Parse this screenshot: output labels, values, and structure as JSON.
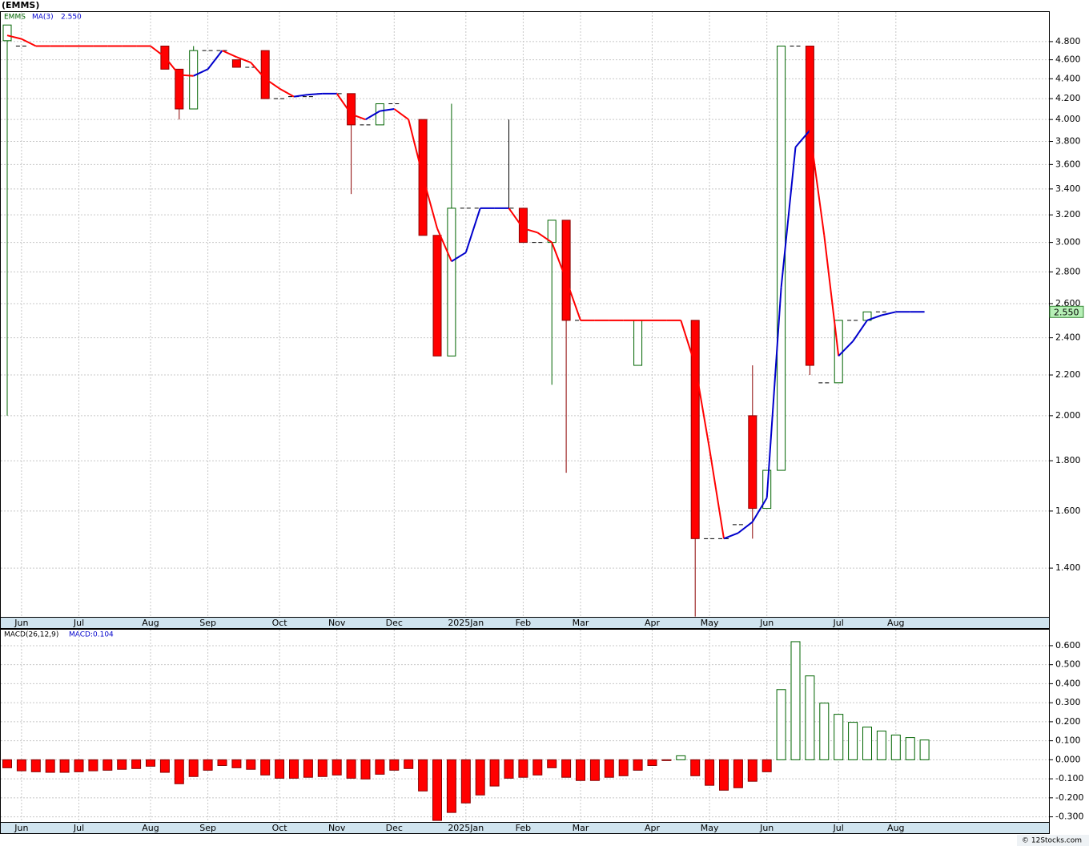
{
  "footer": "© 12Stocks.com",
  "chart_data": [
    {
      "type": "candlestick",
      "title": "(EMMS)",
      "log_scale": true,
      "grid": true,
      "categories": [
        null,
        "Jun",
        null,
        null,
        null,
        "Jul",
        null,
        null,
        null,
        null,
        "Aug",
        null,
        null,
        null,
        "Sep",
        null,
        null,
        null,
        null,
        "Oct",
        null,
        null,
        null,
        "Nov",
        null,
        null,
        null,
        "Dec",
        null,
        null,
        null,
        null,
        "2025Jan",
        null,
        null,
        null,
        "Feb",
        null,
        null,
        null,
        "Mar",
        null,
        null,
        null,
        null,
        "Apr",
        null,
        null,
        null,
        "May",
        null,
        null,
        null,
        "Jun",
        null,
        null,
        null,
        null,
        "Jul",
        null,
        null,
        null,
        "Aug",
        null,
        null
      ],
      "ylim": [
        1.249,
        5.144
      ],
      "yticks": [
        {
          "value": 1.4,
          "label": "1.400"
        },
        {
          "value": 1.6,
          "label": "1.600"
        },
        {
          "value": 1.8,
          "label": "1.800"
        },
        {
          "value": 2.0,
          "label": "2.000"
        },
        {
          "value": 2.2,
          "label": "2.200"
        },
        {
          "value": 2.4,
          "label": "2.400"
        },
        {
          "value": 2.6,
          "label": "2.600"
        },
        {
          "value": 2.8,
          "label": "2.800"
        },
        {
          "value": 3.0,
          "label": "3.000"
        },
        {
          "value": 3.2,
          "label": "3.200"
        },
        {
          "value": 3.4,
          "label": "3.400"
        },
        {
          "value": 3.6,
          "label": "3.600"
        },
        {
          "value": 3.8,
          "label": "3.800"
        },
        {
          "value": 4.0,
          "label": "4.000"
        },
        {
          "value": 4.2,
          "label": "4.200"
        },
        {
          "value": 4.4,
          "label": "4.400"
        },
        {
          "value": 4.6,
          "label": "4.600"
        },
        {
          "value": 4.8,
          "label": "4.800"
        }
      ],
      "series": [
        {
          "name": "EMMS",
          "color": "#006400",
          "down_color": "#ff0000",
          "open": [
            4.81,
            4.75,
            null,
            null,
            null,
            null,
            null,
            null,
            null,
            null,
            null,
            4.75,
            4.5,
            4.1,
            4.7,
            4.7,
            4.6,
            4.52,
            4.7,
            4.2,
            4.22,
            4.22,
            4.25,
            4.25,
            4.25,
            3.95,
            3.95,
            4.15,
            null,
            4.0,
            3.05,
            2.3,
            3.25,
            3.25,
            3.25,
            3.25,
            3.25,
            3.0,
            3.0,
            3.16,
            2.5,
            null,
            null,
            null,
            2.25,
            null,
            null,
            null,
            2.5,
            1.5,
            1.5,
            1.55,
            2.0,
            1.61,
            1.76,
            4.75,
            4.75,
            2.16,
            2.16,
            2.5,
            2.5,
            2.55,
            null,
            null,
            null
          ],
          "high": [
            4.99,
            4.75,
            null,
            null,
            null,
            null,
            null,
            null,
            null,
            null,
            null,
            4.75,
            4.5,
            4.75,
            4.7,
            4.7,
            4.6,
            4.52,
            4.7,
            4.2,
            4.22,
            4.22,
            4.25,
            4.25,
            4.25,
            3.95,
            4.15,
            4.15,
            null,
            4.0,
            3.05,
            4.15,
            3.25,
            3.25,
            3.25,
            4.0,
            3.25,
            3.0,
            3.16,
            3.16,
            2.5,
            null,
            null,
            null,
            2.5,
            null,
            null,
            null,
            2.5,
            1.5,
            1.5,
            1.55,
            2.25,
            1.76,
            4.75,
            4.75,
            4.75,
            2.16,
            2.5,
            2.5,
            2.55,
            2.55,
            null,
            null,
            null
          ],
          "low": [
            2.0,
            4.75,
            null,
            null,
            null,
            null,
            null,
            null,
            null,
            null,
            null,
            4.5,
            4.0,
            4.1,
            4.7,
            4.7,
            4.52,
            4.52,
            4.2,
            4.2,
            4.22,
            4.22,
            4.25,
            4.25,
            3.36,
            3.95,
            3.95,
            4.15,
            null,
            3.05,
            2.3,
            2.3,
            3.25,
            3.25,
            3.25,
            3.25,
            3.0,
            3.0,
            2.15,
            1.75,
            2.5,
            null,
            null,
            null,
            2.25,
            null,
            null,
            null,
            1.25,
            1.5,
            1.5,
            1.55,
            1.5,
            1.61,
            1.76,
            4.75,
            2.2,
            2.16,
            2.16,
            2.5,
            2.5,
            2.55,
            null,
            null,
            null
          ],
          "close": [
            4.99,
            4.75,
            null,
            null,
            null,
            null,
            null,
            null,
            null,
            null,
            null,
            4.5,
            4.1,
            4.7,
            4.7,
            4.7,
            4.52,
            4.52,
            4.2,
            4.2,
            4.22,
            4.22,
            4.25,
            4.25,
            3.95,
            3.95,
            4.15,
            4.15,
            null,
            3.05,
            2.3,
            3.25,
            3.25,
            3.25,
            3.25,
            3.25,
            3.0,
            3.0,
            3.16,
            2.5,
            2.5,
            null,
            null,
            null,
            2.5,
            null,
            null,
            null,
            1.5,
            1.5,
            1.5,
            1.55,
            1.61,
            1.76,
            4.75,
            4.75,
            2.25,
            2.16,
            2.5,
            2.5,
            2.55,
            2.55,
            null,
            null,
            null
          ]
        },
        {
          "name": "MA(3)",
          "color": "#0000cc",
          "down_color": "#ff0000",
          "values": [
            4.87,
            4.83,
            4.75,
            4.75,
            4.75,
            4.75,
            4.75,
            4.75,
            4.75,
            4.75,
            4.75,
            4.63,
            4.44,
            4.43,
            4.5,
            4.7,
            4.63,
            4.57,
            4.4,
            4.3,
            4.22,
            4.24,
            4.25,
            4.25,
            4.05,
            4.0,
            4.08,
            4.1,
            4.0,
            3.5,
            3.1,
            2.87,
            2.93,
            3.25,
            3.25,
            3.25,
            3.1,
            3.07,
            3.0,
            2.75,
            2.5,
            2.5,
            2.5,
            2.5,
            2.5,
            2.5,
            2.5,
            2.5,
            2.25,
            1.85,
            1.5,
            1.52,
            1.56,
            1.65,
            2.7,
            3.75,
            3.9,
            3.05,
            2.3,
            2.38,
            2.5,
            2.53,
            2.55,
            2.55,
            2.55
          ]
        }
      ],
      "last_price": {
        "value": 2.55,
        "label": "2.550"
      }
    },
    {
      "type": "bar",
      "name": "MACD(26,12,9)",
      "value_label": "MACD:0.104",
      "grid": true,
      "color": "#006400",
      "down_color": "#ff0000",
      "values": [
        -0.042,
        -0.058,
        -0.063,
        -0.066,
        -0.066,
        -0.063,
        -0.058,
        -0.055,
        -0.05,
        -0.046,
        -0.034,
        -0.066,
        -0.126,
        -0.088,
        -0.055,
        -0.03,
        -0.042,
        -0.05,
        -0.08,
        -0.097,
        -0.097,
        -0.092,
        -0.088,
        -0.08,
        -0.097,
        -0.101,
        -0.076,
        -0.055,
        -0.046,
        -0.164,
        -0.319,
        -0.277,
        -0.227,
        -0.185,
        -0.138,
        -0.097,
        -0.092,
        -0.08,
        -0.042,
        -0.092,
        -0.109,
        -0.109,
        -0.092,
        -0.084,
        -0.055,
        -0.03,
        -0.004,
        0.021,
        -0.084,
        -0.134,
        -0.16,
        -0.147,
        -0.113,
        -0.063,
        0.369,
        0.621,
        0.441,
        0.298,
        0.239,
        0.197,
        0.172,
        0.151,
        0.13,
        0.117,
        0.104
      ],
      "ylim": [
        -0.327,
        0.684
      ],
      "yticks": [
        {
          "value": -0.3,
          "label": "-0.300"
        },
        {
          "value": -0.2,
          "label": "-0.200"
        },
        {
          "value": -0.1,
          "label": "-0.100"
        },
        {
          "value": 0,
          "label": "0.000"
        },
        {
          "value": 0.1,
          "label": "0.100"
        },
        {
          "value": 0.2,
          "label": "0.200"
        },
        {
          "value": 0.3,
          "label": "0.300"
        },
        {
          "value": 0.4,
          "label": "0.400"
        },
        {
          "value": 0.5,
          "label": "0.500"
        },
        {
          "value": 0.6,
          "label": "0.600"
        }
      ]
    }
  ]
}
